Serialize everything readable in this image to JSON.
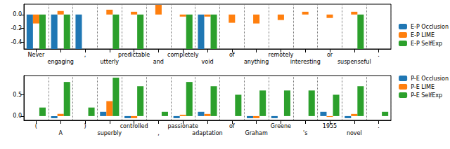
{
  "chart_data": [
    {
      "type": "bar",
      "categories": [
        "Never",
        "engaging",
        ",",
        "utterly",
        "predictable",
        "and",
        "completely",
        "void",
        "of",
        "anything",
        "remotely",
        "interesting",
        "or",
        "suspenseful",
        "."
      ],
      "series": [
        {
          "name": "E-P Occlusion",
          "color": "#1f77b4",
          "values": [
            -0.5,
            -0.5,
            -0.5,
            0,
            0,
            0,
            0,
            -0.5,
            0,
            0,
            0,
            0,
            0,
            0,
            0
          ]
        },
        {
          "name": "E-P LIME",
          "color": "#ff7f0e",
          "values": [
            -0.13,
            0.05,
            0,
            0.07,
            0.04,
            0.14,
            -0.03,
            -0.03,
            -0.12,
            -0.13,
            -0.08,
            0.04,
            -0.05,
            0.04,
            0
          ]
        },
        {
          "name": "E-P SelfExp",
          "color": "#2ca02c",
          "values": [
            -0.5,
            -0.5,
            0,
            -0.5,
            -0.5,
            0,
            -0.5,
            -0.5,
            0,
            0,
            0,
            0,
            0,
            -0.5,
            0
          ]
        }
      ],
      "ylim": [
        -0.5,
        0.15
      ],
      "yticks": [
        -0.4,
        -0.2,
        {
          "value": 0,
          "label": "0.0"
        }
      ],
      "grid": true,
      "legend": "lower right"
    },
    {
      "type": "bar",
      "categories": [
        "(",
        "A",
        ")",
        "superbly",
        "controlled",
        ",",
        "passionate",
        "adaptation",
        "of",
        "Graham",
        "Greene",
        "'s",
        "1955",
        "novel",
        "."
      ],
      "series": [
        {
          "name": "P-E Occlusion",
          "color": "#1f77b4",
          "values": [
            0,
            -0.05,
            0,
            0.1,
            -0.05,
            0,
            -0.05,
            0.1,
            0,
            -0.05,
            -0.05,
            0,
            0.1,
            -0.05,
            0
          ]
        },
        {
          "name": "P-E LIME",
          "color": "#ff7f0e",
          "values": [
            0,
            0.05,
            0,
            0.35,
            -0.05,
            0,
            0.03,
            0.05,
            0,
            -0.05,
            0,
            0,
            -0.02,
            0.05,
            0
          ]
        },
        {
          "name": "P-E SelfExp",
          "color": "#2ca02c",
          "values": [
            0.2,
            0.8,
            0.2,
            0.9,
            0.7,
            0.1,
            0.8,
            0.7,
            0.5,
            0.6,
            0.6,
            0.6,
            0.5,
            0.7,
            0.1
          ]
        }
      ],
      "ylim": [
        -0.1,
        0.95
      ],
      "yticks": [
        {
          "value": 0,
          "label": "0.0"
        },
        0.5
      ],
      "grid": true,
      "legend": "upper right"
    }
  ]
}
